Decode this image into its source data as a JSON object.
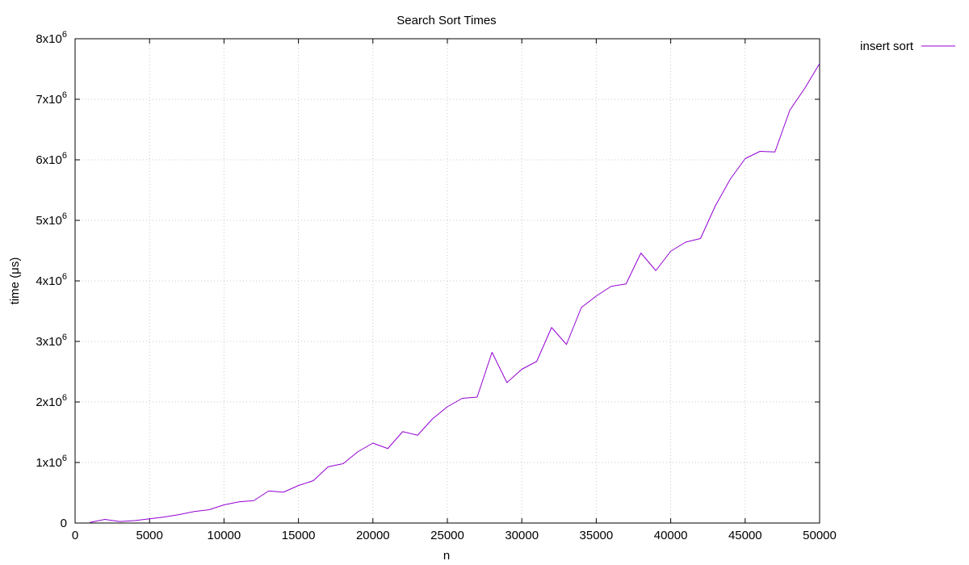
{
  "chart_data": {
    "type": "line",
    "title": "Search  Sort Times",
    "xlabel": "n",
    "ylabel": "time (μs)",
    "xlim": [
      0,
      50000
    ],
    "ylim": [
      0,
      8000000
    ],
    "x_ticks": [
      0,
      5000,
      10000,
      15000,
      20000,
      25000,
      30000,
      35000,
      40000,
      45000,
      50000
    ],
    "x_tick_labels": [
      "0",
      "5000",
      "10000",
      "15000",
      "20000",
      "25000",
      "30000",
      "35000",
      "40000",
      "45000",
      "50000"
    ],
    "y_ticks": [
      0,
      1000000,
      2000000,
      3000000,
      4000000,
      5000000,
      6000000,
      7000000,
      8000000
    ],
    "y_tick_labels": [
      {
        "base": "0",
        "exp": ""
      },
      {
        "base": "1x10",
        "exp": "6"
      },
      {
        "base": "2x10",
        "exp": "6"
      },
      {
        "base": "3x10",
        "exp": "6"
      },
      {
        "base": "4x10",
        "exp": "6"
      },
      {
        "base": "5x10",
        "exp": "6"
      },
      {
        "base": "6x10",
        "exp": "6"
      },
      {
        "base": "7x10",
        "exp": "6"
      },
      {
        "base": "8x10",
        "exp": "6"
      }
    ],
    "grid": true,
    "legend_position": "outside-top-right",
    "series": [
      {
        "name": "insert sort",
        "color": "#9400d3",
        "x": [
          1000,
          2000,
          3000,
          4000,
          5000,
          6000,
          7000,
          8000,
          9000,
          10000,
          11000,
          12000,
          13000,
          14000,
          15000,
          16000,
          17000,
          18000,
          19000,
          20000,
          21000,
          22000,
          23000,
          24000,
          25000,
          26000,
          27000,
          28000,
          29000,
          30000,
          31000,
          32000,
          33000,
          34000,
          35000,
          36000,
          37000,
          38000,
          39000,
          40000,
          41000,
          42000,
          43000,
          44000,
          45000,
          46000,
          47000,
          48000,
          49000,
          50000
        ],
        "y": [
          10000,
          60000,
          25000,
          40000,
          70000,
          100000,
          140000,
          190000,
          220000,
          300000,
          350000,
          370000,
          530000,
          510000,
          620000,
          700000,
          930000,
          980000,
          1180000,
          1320000,
          1230000,
          1510000,
          1450000,
          1720000,
          1920000,
          2060000,
          2080000,
          2820000,
          2320000,
          2540000,
          2670000,
          3230000,
          2950000,
          3560000,
          3750000,
          3910000,
          3950000,
          4460000,
          4170000,
          4490000,
          4640000,
          4700000,
          5240000,
          5680000,
          6020000,
          6140000,
          6130000,
          6820000,
          7180000,
          7590000
        ]
      }
    ]
  }
}
